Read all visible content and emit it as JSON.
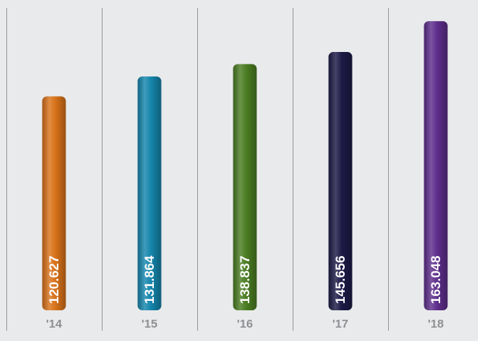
{
  "chart_data": {
    "type": "bar",
    "categories": [
      "'14",
      "'15",
      "'16",
      "'17",
      "'18"
    ],
    "values": [
      120.627,
      131.864,
      138.837,
      145.656,
      163.048
    ],
    "value_labels": [
      "120.627",
      "131.864",
      "138.837",
      "145.656",
      "163.048"
    ],
    "bar_colors": [
      "#d9731a",
      "#1586ad",
      "#4b7d22",
      "#1d1a47",
      "#5e2e8c"
    ],
    "title": "",
    "xlabel": "",
    "ylabel": "",
    "ylim": [
      0,
      167
    ],
    "grid": "vertical separators between categories",
    "legend": "none"
  },
  "colors": {
    "background": "#e9eaeb",
    "separator": "#9a9c9f",
    "category_label": "#8e9093",
    "value_label": "#ffffff"
  }
}
